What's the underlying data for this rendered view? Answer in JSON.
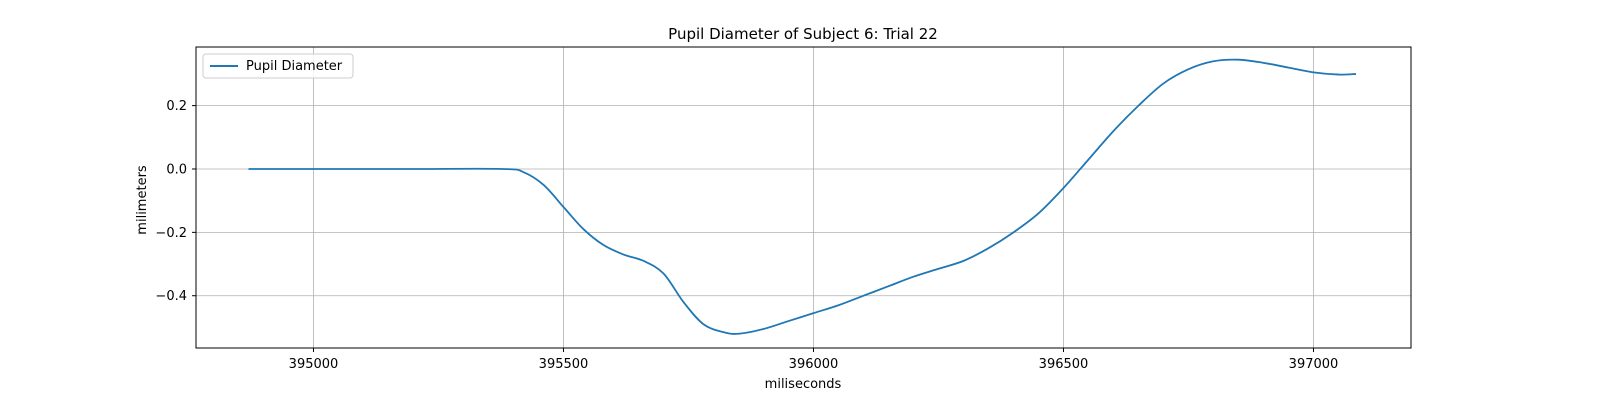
{
  "chart_data": {
    "type": "line",
    "title": "Pupil Diameter of Subject 6: Trial 22",
    "xlabel": "miliseconds",
    "ylabel": "milimeters",
    "xlim": [
      394765,
      397195
    ],
    "ylim": [
      -0.565,
      0.385
    ],
    "xticks": [
      395000,
      395500,
      396000,
      396500,
      397000
    ],
    "yticks": [
      -0.4,
      -0.2,
      0.0,
      0.2
    ],
    "xtick_labels": [
      "395000",
      "395500",
      "396000",
      "396500",
      "397000"
    ],
    "ytick_labels": [
      "−0.4",
      "−0.2",
      "0.0",
      "0.2"
    ],
    "grid": true,
    "legend_position": "upper-left",
    "series": [
      {
        "name": "Pupil Diameter",
        "color": "#1f77b4",
        "x": [
          394870,
          395000,
          395200,
          395380,
          395420,
          395460,
          395500,
          395540,
          395580,
          395620,
          395660,
          395700,
          395740,
          395780,
          395820,
          395850,
          395900,
          395950,
          396000,
          396050,
          396100,
          396150,
          396200,
          396250,
          396300,
          396350,
          396400,
          396450,
          396500,
          396550,
          396600,
          396650,
          396700,
          396750,
          396800,
          396850,
          396900,
          396950,
          397000,
          397050,
          397085
        ],
        "y": [
          0.0,
          0.0,
          0.0,
          0.0,
          -0.01,
          -0.05,
          -0.12,
          -0.19,
          -0.24,
          -0.27,
          -0.29,
          -0.33,
          -0.42,
          -0.49,
          -0.515,
          -0.52,
          -0.505,
          -0.48,
          -0.455,
          -0.43,
          -0.4,
          -0.37,
          -0.34,
          -0.315,
          -0.29,
          -0.25,
          -0.2,
          -0.14,
          -0.06,
          0.03,
          0.12,
          0.2,
          0.27,
          0.315,
          0.34,
          0.345,
          0.335,
          0.32,
          0.305,
          0.298,
          0.3
        ]
      }
    ]
  }
}
